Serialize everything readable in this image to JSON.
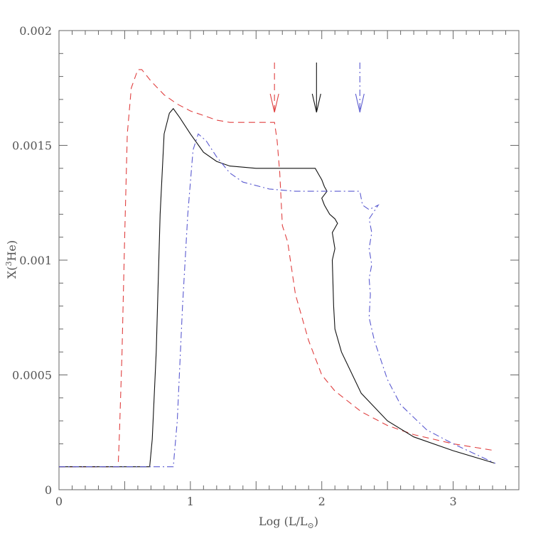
{
  "chart_data": {
    "type": "line",
    "xlabel_parts": {
      "main": "Log (L/L",
      "sub": "⊙",
      "close": ")"
    },
    "ylabel_parts": {
      "main": "X(",
      "sup": "3",
      "rest": "He)"
    },
    "xlim": [
      0,
      3.5
    ],
    "ylim": [
      0,
      0.002
    ],
    "x_ticks": [
      {
        "value": 0,
        "label": "0"
      },
      {
        "value": 1,
        "label": "1"
      },
      {
        "value": 2,
        "label": "2"
      },
      {
        "value": 3,
        "label": "3"
      }
    ],
    "y_ticks": [
      {
        "value": 0,
        "label": "0"
      },
      {
        "value": 0.0005,
        "label": "0.0005"
      },
      {
        "value": 0.001,
        "label": "0.001"
      },
      {
        "value": 0.0015,
        "label": "0.0015"
      },
      {
        "value": 0.002,
        "label": "0.002"
      }
    ],
    "x_minor_step": 0.1,
    "y_minor_step": 0.0001,
    "series": [
      {
        "color": "#e04040",
        "dash": "dashed",
        "arrow_x": 1.64,
        "points": [
          [
            0,
            0.0001
          ],
          [
            0.45,
            0.0001
          ],
          [
            0.46,
            0.00024
          ],
          [
            0.48,
            0.0006
          ],
          [
            0.5,
            0.0011
          ],
          [
            0.52,
            0.00155
          ],
          [
            0.55,
            0.00175
          ],
          [
            0.6,
            0.00183
          ],
          [
            0.63,
            0.00183
          ],
          [
            0.7,
            0.00178
          ],
          [
            0.8,
            0.00172
          ],
          [
            0.9,
            0.00168
          ],
          [
            1.0,
            0.00165
          ],
          [
            1.1,
            0.00163
          ],
          [
            1.2,
            0.00161
          ],
          [
            1.3,
            0.0016
          ],
          [
            1.64,
            0.0016
          ],
          [
            1.66,
            0.00152
          ],
          [
            1.68,
            0.00138
          ],
          [
            1.7,
            0.00115
          ],
          [
            1.74,
            0.00108
          ],
          [
            1.8,
            0.00085
          ],
          [
            1.9,
            0.00065
          ],
          [
            2.0,
            0.0005
          ],
          [
            2.1,
            0.00043
          ],
          [
            2.3,
            0.00034
          ],
          [
            2.5,
            0.00028
          ],
          [
            2.7,
            0.00024
          ],
          [
            3.0,
            0.0002
          ],
          [
            3.32,
            0.00017
          ]
        ]
      },
      {
        "color": "#111111",
        "dash": "solid",
        "arrow_x": 1.96,
        "points": [
          [
            0,
            0.0001
          ],
          [
            0.69,
            0.0001
          ],
          [
            0.71,
            0.00022
          ],
          [
            0.74,
            0.0006
          ],
          [
            0.77,
            0.0012
          ],
          [
            0.8,
            0.00155
          ],
          [
            0.84,
            0.00164
          ],
          [
            0.87,
            0.00166
          ],
          [
            0.92,
            0.00162
          ],
          [
            1.0,
            0.00155
          ],
          [
            1.1,
            0.00147
          ],
          [
            1.2,
            0.00143
          ],
          [
            1.3,
            0.00141
          ],
          [
            1.5,
            0.0014
          ],
          [
            1.95,
            0.0014
          ],
          [
            1.98,
            0.00137
          ],
          [
            2.0,
            0.00135
          ],
          [
            2.02,
            0.00132
          ],
          [
            2.04,
            0.0013
          ],
          [
            2.0,
            0.00127
          ],
          [
            2.02,
            0.00124
          ],
          [
            2.06,
            0.0012
          ],
          [
            2.1,
            0.00118
          ],
          [
            2.12,
            0.00116
          ],
          [
            2.08,
            0.00112
          ],
          [
            2.1,
            0.00105
          ],
          [
            2.08,
            0.001
          ],
          [
            2.09,
            0.0008
          ],
          [
            2.1,
            0.0007
          ],
          [
            2.15,
            0.0006
          ],
          [
            2.3,
            0.00042
          ],
          [
            2.5,
            0.0003
          ],
          [
            2.7,
            0.00023
          ],
          [
            3.0,
            0.00017
          ],
          [
            3.32,
            0.000115
          ]
        ]
      },
      {
        "color": "#5a5ad0",
        "dash": "dashdot",
        "arrow_x": 2.29,
        "points": [
          [
            0,
            0.0001
          ],
          [
            0.87,
            0.0001
          ],
          [
            0.9,
            0.0003
          ],
          [
            0.94,
            0.0008
          ],
          [
            0.98,
            0.0012
          ],
          [
            1.02,
            0.00148
          ],
          [
            1.06,
            0.00155
          ],
          [
            1.12,
            0.00152
          ],
          [
            1.2,
            0.00145
          ],
          [
            1.3,
            0.00138
          ],
          [
            1.4,
            0.00134
          ],
          [
            1.6,
            0.00131
          ],
          [
            1.8,
            0.0013
          ],
          [
            2.29,
            0.0013
          ],
          [
            2.31,
            0.00124
          ],
          [
            2.36,
            0.00122
          ],
          [
            2.43,
            0.00124
          ],
          [
            2.36,
            0.00118
          ],
          [
            2.38,
            0.00112
          ],
          [
            2.36,
            0.00105
          ],
          [
            2.38,
            0.00098
          ],
          [
            2.36,
            0.00092
          ],
          [
            2.37,
            0.00085
          ],
          [
            2.36,
            0.00075
          ],
          [
            2.4,
            0.00065
          ],
          [
            2.5,
            0.00048
          ],
          [
            2.6,
            0.00037
          ],
          [
            2.8,
            0.00026
          ],
          [
            3.0,
            0.0002
          ],
          [
            3.32,
            0.000115
          ]
        ]
      }
    ]
  }
}
